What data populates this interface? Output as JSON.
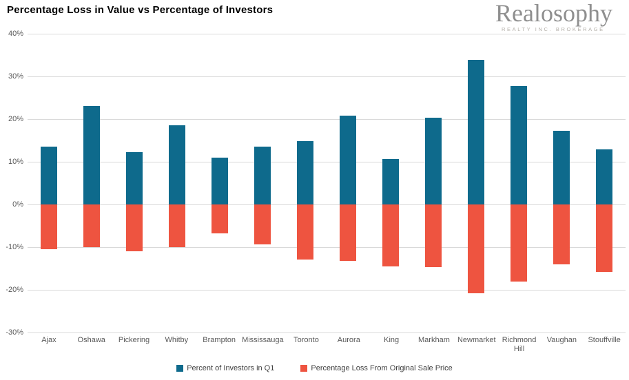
{
  "header": {
    "title": "Percentage Loss in Value vs Percentage of Investors",
    "brand": {
      "name": "Realosophy",
      "tagline": "REALTY INC. BROKERAGE"
    }
  },
  "colors": {
    "investors_bar": "#0e6a8c",
    "loss_bar": "#ee5440",
    "gridline": "#d9d9d9",
    "axis_text": "#595959",
    "legend_text": "#404040",
    "logo_text": "#8f8f8f",
    "logo_tagline": "#b4b0aa"
  },
  "chart_data": {
    "type": "bar",
    "title": "Percentage Loss in Value vs Percentage of Investors",
    "categories": [
      "Ajax",
      "Oshawa",
      "Pickering",
      "Whitby",
      "Brampton",
      "Mississauga",
      "Toronto",
      "Aurora",
      "King",
      "Markham",
      "Newmarket",
      "Richmond Hill",
      "Vaughan",
      "Stouffville"
    ],
    "series": [
      {
        "name": "Percent of Investors in Q1",
        "color": "#0e6a8c",
        "values": [
          13.6,
          23.0,
          12.2,
          18.5,
          11.0,
          13.5,
          14.8,
          20.8,
          10.6,
          20.3,
          33.9,
          27.8,
          17.2,
          12.9
        ]
      },
      {
        "name": "Percentage Loss From Original Sale Price",
        "color": "#ee5440",
        "values": [
          -10.5,
          -10.0,
          -11.0,
          -10.0,
          -6.8,
          -9.4,
          -12.9,
          -13.3,
          -14.5,
          -14.6,
          -20.8,
          -18.1,
          -14.0,
          -15.8
        ]
      }
    ],
    "xlabel": "",
    "ylabel": "",
    "ylim": [
      -30,
      40
    ],
    "yticks": [
      40,
      30,
      20,
      10,
      0,
      -10,
      -20,
      -30
    ],
    "ytick_labels": [
      "40%",
      "30%",
      "20%",
      "10%",
      "0%",
      "-10%",
      "-20%",
      "-30%"
    ],
    "grid": true,
    "legend_position": "bottom"
  }
}
